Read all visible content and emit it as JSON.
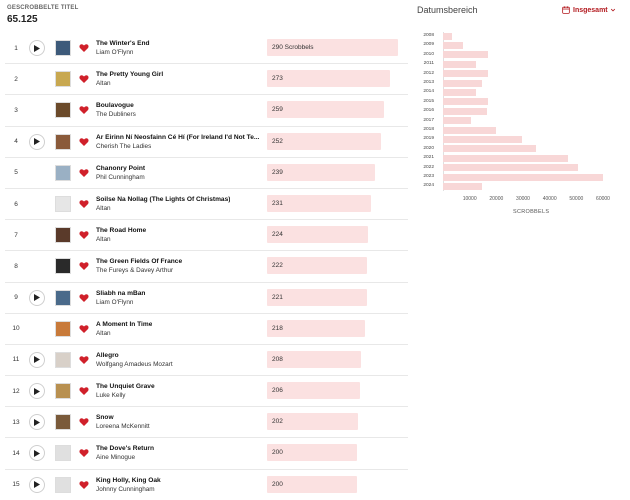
{
  "header": {
    "label": "GESCROBBELTE TITEL",
    "total": "65.125"
  },
  "tracks": [
    {
      "rank": "1",
      "title": "The Winter's End",
      "artist": "Liam O'Flynn",
      "scrobbles": 290,
      "scrobbles_label": "290 Scrobbels",
      "play": true,
      "cover_color": "#3d5a7a"
    },
    {
      "rank": "2",
      "title": "The Pretty Young Girl",
      "artist": "Altan",
      "scrobbles": 273,
      "scrobbles_label": "273",
      "play": false,
      "cover_color": "#c8a850"
    },
    {
      "rank": "3",
      "title": "Boulavogue",
      "artist": "The Dubliners",
      "scrobbles": 259,
      "scrobbles_label": "259",
      "play": false,
      "cover_color": "#6b4a2a"
    },
    {
      "rank": "4",
      "title": "Ar Éirinn Ní Neosfainn Cé Hí (For Ireland I'd Not Te...",
      "artist": "Cherish The Ladies",
      "scrobbles": 252,
      "scrobbles_label": "252",
      "play": true,
      "cover_color": "#8a5a3a"
    },
    {
      "rank": "5",
      "title": "Chanonry Point",
      "artist": "Phil Cunningham",
      "scrobbles": 239,
      "scrobbles_label": "239",
      "play": false,
      "cover_color": "#9ab0c4"
    },
    {
      "rank": "6",
      "title": "Soilse Na Nollag (The Lights Of Christmas)",
      "artist": "Altan",
      "scrobbles": 231,
      "scrobbles_label": "231",
      "play": false,
      "cover_color": "#e6e6e6"
    },
    {
      "rank": "7",
      "title": "The Road Home",
      "artist": "Altan",
      "scrobbles": 224,
      "scrobbles_label": "224",
      "play": false,
      "cover_color": "#5a3a2a"
    },
    {
      "rank": "8",
      "title": "The Green Fields Of France",
      "artist": "The Fureys & Davey Arthur",
      "scrobbles": 222,
      "scrobbles_label": "222",
      "play": false,
      "cover_color": "#2a2a2a"
    },
    {
      "rank": "9",
      "title": "Sliabh na mBan",
      "artist": "Liam O'Flynn",
      "scrobbles": 221,
      "scrobbles_label": "221",
      "play": true,
      "cover_color": "#4a6a8a"
    },
    {
      "rank": "10",
      "title": "A Moment In Time",
      "artist": "Altan",
      "scrobbles": 218,
      "scrobbles_label": "218",
      "play": false,
      "cover_color": "#c87a3a"
    },
    {
      "rank": "11",
      "title": "Allegro",
      "artist": "Wolfgang Amadeus Mozart",
      "scrobbles": 208,
      "scrobbles_label": "208",
      "play": true,
      "cover_color": "#d8d0c8"
    },
    {
      "rank": "12",
      "title": "The Unquiet Grave",
      "artist": "Luke Kelly",
      "scrobbles": 206,
      "scrobbles_label": "206",
      "play": true,
      "cover_color": "#b89050"
    },
    {
      "rank": "13",
      "title": "Snow",
      "artist": "Loreena McKennitt",
      "scrobbles": 202,
      "scrobbles_label": "202",
      "play": true,
      "cover_color": "#7a5a3a"
    },
    {
      "rank": "14",
      "title": "The Dove's Return",
      "artist": "Aine Minogue",
      "scrobbles": 200,
      "scrobbles_label": "200",
      "play": true,
      "cover_color": "#e0e0e0"
    },
    {
      "rank": "15",
      "title": "King Holly, King Oak",
      "artist": "Johnny Cunningham",
      "scrobbles": 200,
      "scrobbles_label": "200",
      "play": true,
      "cover_color": "#e0e0e0"
    }
  ],
  "bar_max": 310,
  "date_range": {
    "title": "Datumsbereich",
    "select_label": "Insgesamt"
  },
  "colors": {
    "accent": "#b3191e",
    "heart": "#d0202a",
    "bar": "#fbe1e1",
    "year_bar": "#f8d7d7"
  },
  "chart_data": {
    "type": "bar",
    "orientation": "horizontal",
    "title": "Datumsbereich",
    "xlabel": "SCROBBELS",
    "ylabel": "",
    "xlim": [
      0,
      60000
    ],
    "xticks": [
      "10000",
      "20000",
      "30000",
      "40000",
      "50000",
      "60000"
    ],
    "xtick_values": [
      10000,
      20000,
      30000,
      40000,
      50000,
      60000
    ],
    "categories": [
      "2008",
      "2009",
      "2010",
      "2011",
      "2012",
      "2013",
      "2014",
      "2015",
      "2016",
      "2017",
      "2018",
      "2019",
      "2020",
      "2021",
      "2022",
      "2023",
      "2024"
    ],
    "values": [
      3500,
      7500,
      17000,
      12500,
      17000,
      14500,
      12500,
      17000,
      16500,
      10500,
      20000,
      29500,
      35000,
      47000,
      50500,
      60000,
      14500
    ]
  }
}
